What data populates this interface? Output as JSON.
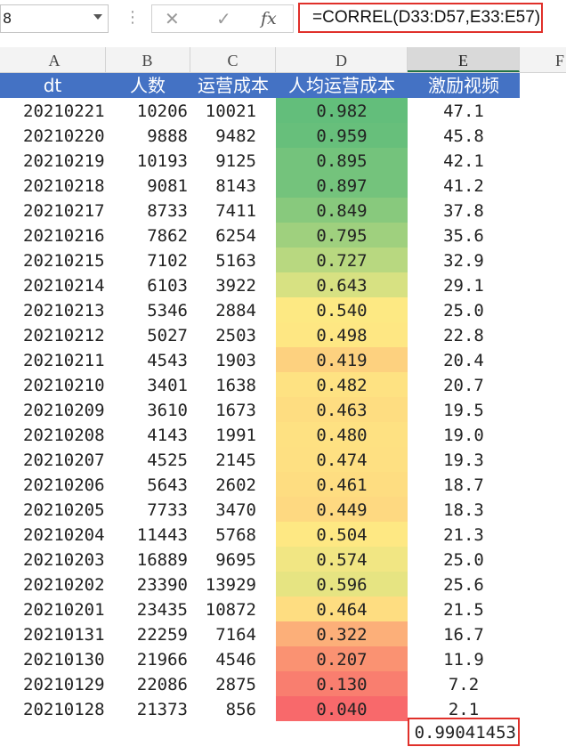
{
  "formula_bar": {
    "name_box": "8",
    "cancel_glyph": "✕",
    "enter_glyph": "✓",
    "fx_label": "fx",
    "formula": "=CORREL(D33:D57,E33:E57)"
  },
  "columns": [
    "A",
    "B",
    "C",
    "D",
    "E",
    "F"
  ],
  "selected_column": "E",
  "table": {
    "headers": [
      "dt",
      "人数",
      "运营成本",
      "人均运营成本",
      "激励视频"
    ],
    "rows": [
      {
        "dt": "20210221",
        "people": "10206",
        "cost": "10021",
        "per_cost": "0.982",
        "video": "47.1",
        "shade": "#63be7b"
      },
      {
        "dt": "20210220",
        "people": "9888",
        "cost": "9482",
        "per_cost": "0.959",
        "video": "45.8",
        "shade": "#67bf7b"
      },
      {
        "dt": "20210219",
        "people": "10193",
        "cost": "9125",
        "per_cost": "0.895",
        "video": "42.1",
        "shade": "#74c37c"
      },
      {
        "dt": "20210218",
        "people": "9081",
        "cost": "8143",
        "per_cost": "0.897",
        "video": "41.2",
        "shade": "#74c37c"
      },
      {
        "dt": "20210217",
        "people": "8733",
        "cost": "7411",
        "per_cost": "0.849",
        "video": "37.8",
        "shade": "#88c97d"
      },
      {
        "dt": "20210216",
        "people": "7862",
        "cost": "6254",
        "per_cost": "0.795",
        "video": "35.6",
        "shade": "#9fd07e"
      },
      {
        "dt": "20210215",
        "people": "7102",
        "cost": "5163",
        "per_cost": "0.727",
        "video": "32.9",
        "shade": "#b8d880"
      },
      {
        "dt": "20210214",
        "people": "6103",
        "cost": "3922",
        "per_cost": "0.643",
        "video": "29.1",
        "shade": "#d7e182"
      },
      {
        "dt": "20210213",
        "people": "5346",
        "cost": "2884",
        "per_cost": "0.540",
        "video": "25.0",
        "shade": "#fde983"
      },
      {
        "dt": "20210212",
        "people": "5027",
        "cost": "2503",
        "per_cost": "0.498",
        "video": "22.8",
        "shade": "#fee783"
      },
      {
        "dt": "20210211",
        "people": "4543",
        "cost": "1903",
        "per_cost": "0.419",
        "video": "20.4",
        "shade": "#fdd17f"
      },
      {
        "dt": "20210210",
        "people": "3401",
        "cost": "1638",
        "per_cost": "0.482",
        "video": "20.7",
        "shade": "#fee282"
      },
      {
        "dt": "20210209",
        "people": "3610",
        "cost": "1673",
        "per_cost": "0.463",
        "video": "19.5",
        "shade": "#fedd81"
      },
      {
        "dt": "20210208",
        "people": "4143",
        "cost": "1991",
        "per_cost": "0.480",
        "video": "19.0",
        "shade": "#fee182"
      },
      {
        "dt": "20210207",
        "people": "4525",
        "cost": "2145",
        "per_cost": "0.474",
        "video": "19.3",
        "shade": "#fee082"
      },
      {
        "dt": "20210206",
        "people": "5643",
        "cost": "2602",
        "per_cost": "0.461",
        "video": "18.7",
        "shade": "#fedd81"
      },
      {
        "dt": "20210205",
        "people": "7733",
        "cost": "3470",
        "per_cost": "0.449",
        "video": "18.3",
        "shade": "#fed981"
      },
      {
        "dt": "20210204",
        "people": "11443",
        "cost": "5768",
        "per_cost": "0.504",
        "video": "21.3",
        "shade": "#fee883"
      },
      {
        "dt": "20210203",
        "people": "16889",
        "cost": "9695",
        "per_cost": "0.574",
        "video": "25.0",
        "shade": "#f1e683"
      },
      {
        "dt": "20210202",
        "people": "23390",
        "cost": "13929",
        "per_cost": "0.596",
        "video": "25.6",
        "shade": "#e6e482"
      },
      {
        "dt": "20210201",
        "people": "23435",
        "cost": "10872",
        "per_cost": "0.464",
        "video": "21.5",
        "shade": "#fedd81"
      },
      {
        "dt": "20210131",
        "people": "22259",
        "cost": "7164",
        "per_cost": "0.322",
        "video": "16.7",
        "shade": "#fcaf79"
      },
      {
        "dt": "20210130",
        "people": "21966",
        "cost": "4546",
        "per_cost": "0.207",
        "video": "11.9",
        "shade": "#fa9272"
      },
      {
        "dt": "20210129",
        "people": "22086",
        "cost": "2875",
        "per_cost": "0.130",
        "video": "7.2",
        "shade": "#f97e6f"
      },
      {
        "dt": "20210128",
        "people": "21373",
        "cost": "856",
        "per_cost": "0.040",
        "video": "2.1",
        "shade": "#f8696b"
      }
    ]
  },
  "correl_result": "0.99041453"
}
